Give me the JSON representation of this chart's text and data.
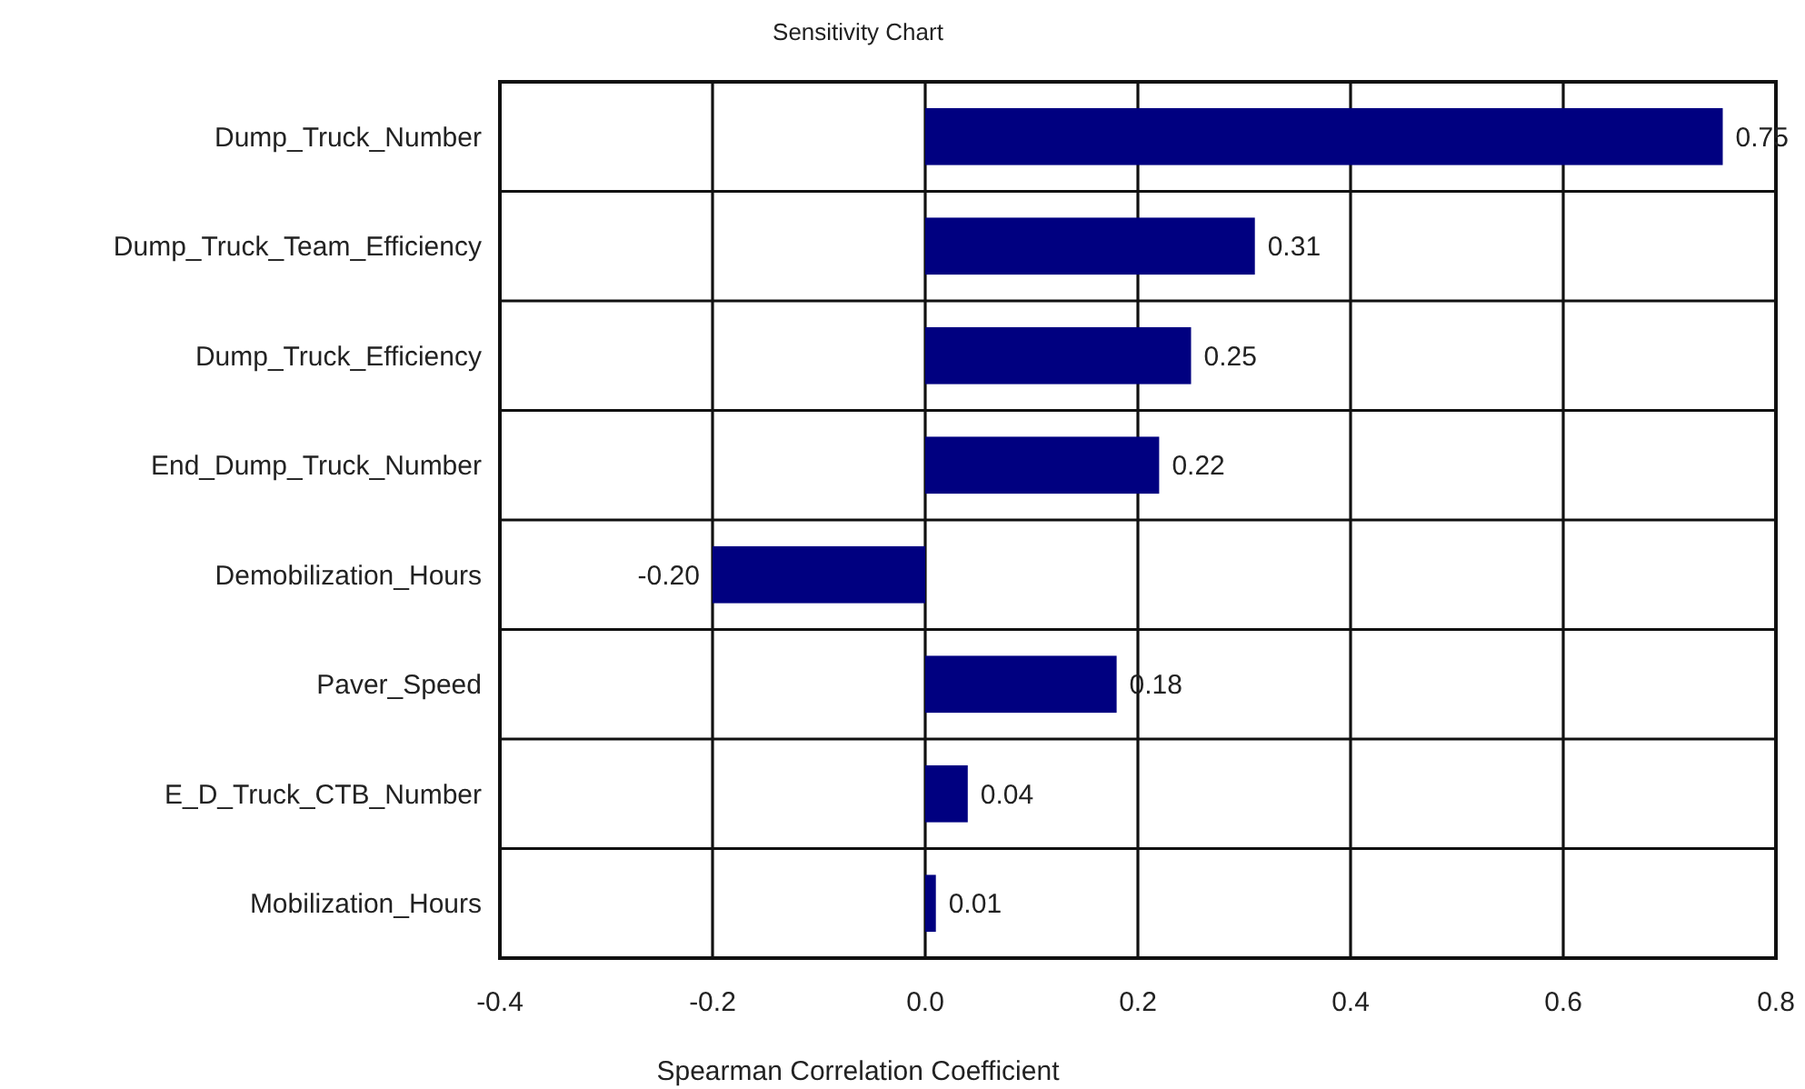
{
  "chart_data": {
    "type": "bar",
    "orientation": "horizontal",
    "title": "Sensitivity Chart",
    "xlabel": "Spearman Correlation Coefficient",
    "categories": [
      "Dump_Truck_Number",
      "Dump_Truck_Team_Efficiency",
      "Dump_Truck_Efficiency",
      "End_Dump_Truck_Number",
      "Demobilization_Hours",
      "Paver_Speed",
      "E_D_Truck_CTB_Number",
      "Mobilization_Hours"
    ],
    "values": [
      0.75,
      0.31,
      0.25,
      0.22,
      -0.2,
      0.18,
      0.04,
      0.01
    ],
    "value_labels": [
      "0.75",
      "0.31",
      "0.25",
      "0.22",
      "-0.20",
      "0.18",
      "0.04",
      "0.01"
    ],
    "color": "#000080",
    "xlim": [
      -0.4,
      0.8
    ],
    "xticks": [
      -0.4,
      -0.2,
      {
        "value": 0,
        "label": "0.0"
      },
      0.2,
      0.4,
      0.6,
      0.8
    ],
    "grid": true
  }
}
